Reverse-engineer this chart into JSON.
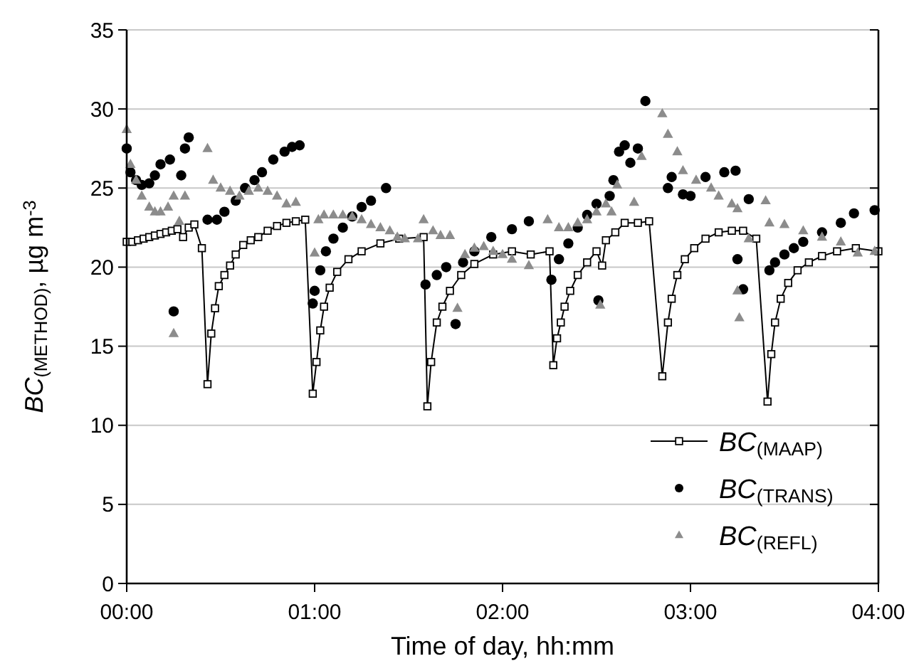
{
  "chart_data": {
    "type": "scatter",
    "xlabel": "Time of day, hh:mm",
    "ylabel": "BC$_{(METHOD)}$, µg m$^{-3}$",
    "xlim": [
      0,
      4
    ],
    "xticks": [
      {
        "value": 0,
        "label": "00:00"
      },
      {
        "value": 1,
        "label": "01:00"
      },
      {
        "value": 2,
        "label": "02:00"
      },
      {
        "value": 3,
        "label": "03:00"
      },
      {
        "value": 4,
        "label": "04:00"
      }
    ],
    "ylim": [
      0,
      35
    ],
    "yticks": [
      0,
      5,
      10,
      15,
      20,
      25,
      30,
      35
    ],
    "grid": "y",
    "legend": "bottom right",
    "series": [
      {
        "name": "BC$_{(MAAP)}$",
        "type": "line",
        "marker": "square",
        "line_style": "solid",
        "color": "#000000",
        "x": [
          0.0,
          0.03,
          0.06,
          0.09,
          0.12,
          0.15,
          0.18,
          0.21,
          0.24,
          0.27,
          0.3,
          0.33,
          0.36,
          0.4,
          0.43,
          0.45,
          0.47,
          0.49,
          0.52,
          0.55,
          0.58,
          0.62,
          0.66,
          0.7,
          0.75,
          0.8,
          0.85,
          0.9,
          0.95,
          0.99,
          1.01,
          1.03,
          1.05,
          1.08,
          1.12,
          1.18,
          1.25,
          1.35,
          1.45,
          1.58,
          1.6,
          1.62,
          1.65,
          1.68,
          1.72,
          1.78,
          1.85,
          1.95,
          2.05,
          2.15,
          2.25,
          2.27,
          2.29,
          2.31,
          2.33,
          2.36,
          2.4,
          2.45,
          2.5,
          2.53,
          2.55,
          2.6,
          2.65,
          2.72,
          2.78,
          2.85,
          2.88,
          2.9,
          2.93,
          2.97,
          3.02,
          3.08,
          3.15,
          3.22,
          3.28,
          3.35,
          3.41,
          3.43,
          3.45,
          3.48,
          3.52,
          3.57,
          3.63,
          3.7,
          3.78,
          3.88,
          4.0
        ],
        "values": [
          21.6,
          21.6,
          21.7,
          21.8,
          21.9,
          22.0,
          22.1,
          22.2,
          22.3,
          22.4,
          21.9,
          22.5,
          22.7,
          21.2,
          12.6,
          15.8,
          17.4,
          18.8,
          19.5,
          20.1,
          20.8,
          21.4,
          21.7,
          21.9,
          22.3,
          22.6,
          22.8,
          22.9,
          23.0,
          12.0,
          14.0,
          16.0,
          17.5,
          18.7,
          19.7,
          20.5,
          21.0,
          21.5,
          21.8,
          21.9,
          11.2,
          14.0,
          16.5,
          17.5,
          18.5,
          19.5,
          20.2,
          20.8,
          21.0,
          20.8,
          21.0,
          13.8,
          15.5,
          16.5,
          17.5,
          18.5,
          19.5,
          20.3,
          21.0,
          20.1,
          21.7,
          22.2,
          22.8,
          22.8,
          22.9,
          13.1,
          16.5,
          18.0,
          19.5,
          20.5,
          21.2,
          21.8,
          22.2,
          22.3,
          22.3,
          21.8,
          11.5,
          14.5,
          16.5,
          18.0,
          19.0,
          19.8,
          20.3,
          20.7,
          21.0,
          21.2,
          21.0
        ]
      },
      {
        "name": "BC$_{(TRANS)}$",
        "marker": "circle",
        "color": "#000000",
        "x": [
          0.0,
          0.02,
          0.05,
          0.08,
          0.12,
          0.15,
          0.18,
          0.23,
          0.25,
          0.29,
          0.31,
          0.33,
          0.43,
          0.48,
          0.52,
          0.58,
          0.63,
          0.68,
          0.72,
          0.78,
          0.84,
          0.88,
          0.92,
          0.99,
          1.0,
          1.03,
          1.06,
          1.1,
          1.15,
          1.2,
          1.25,
          1.3,
          1.38,
          1.59,
          1.65,
          1.7,
          1.75,
          1.79,
          1.85,
          1.94,
          2.05,
          2.14,
          2.26,
          2.3,
          2.35,
          2.4,
          2.45,
          2.51,
          2.5,
          2.57,
          2.59,
          2.62,
          2.65,
          2.68,
          2.72,
          2.76,
          2.88,
          2.9,
          2.96,
          3.0,
          3.08,
          3.18,
          3.24,
          3.25,
          3.28,
          3.31,
          3.42,
          3.45,
          3.5,
          3.55,
          3.6,
          3.7,
          3.8,
          3.87,
          3.98
        ],
        "values": [
          27.5,
          26.0,
          25.5,
          25.2,
          25.3,
          25.8,
          26.5,
          26.8,
          17.2,
          25.8,
          27.5,
          28.2,
          23.0,
          23.0,
          23.5,
          24.2,
          25.0,
          25.5,
          26.0,
          26.8,
          27.3,
          27.6,
          27.7,
          17.7,
          18.5,
          19.8,
          21.0,
          21.8,
          22.5,
          23.2,
          23.8,
          24.2,
          25.0,
          18.9,
          19.5,
          20.0,
          16.4,
          20.3,
          21.0,
          21.9,
          22.4,
          22.9,
          19.2,
          20.5,
          21.5,
          22.5,
          23.3,
          17.9,
          24.0,
          24.5,
          25.5,
          27.3,
          27.7,
          26.6,
          27.5,
          30.5,
          25.0,
          25.7,
          24.6,
          24.5,
          25.7,
          26.0,
          26.1,
          20.5,
          18.6,
          24.3,
          19.8,
          20.3,
          20.8,
          21.2,
          21.6,
          22.2,
          22.8,
          23.4,
          23.6
        ]
      },
      {
        "name": "BC$_{(REFL)}$",
        "marker": "triangle",
        "color": "#8c8c8c",
        "x": [
          0.0,
          0.02,
          0.05,
          0.08,
          0.12,
          0.15,
          0.18,
          0.22,
          0.25,
          0.28,
          0.31,
          0.25,
          0.43,
          0.46,
          0.5,
          0.55,
          0.6,
          0.65,
          0.7,
          0.75,
          0.8,
          0.85,
          0.9,
          1.0,
          1.02,
          1.05,
          1.1,
          1.15,
          1.2,
          1.25,
          1.3,
          1.35,
          1.4,
          1.44,
          1.48,
          1.55,
          1.58,
          1.63,
          1.67,
          1.72,
          1.76,
          1.8,
          1.85,
          1.9,
          1.95,
          2.0,
          2.05,
          2.14,
          2.24,
          2.3,
          2.35,
          2.4,
          2.45,
          2.5,
          2.52,
          2.55,
          2.58,
          2.61,
          2.7,
          2.74,
          2.85,
          2.88,
          2.93,
          2.96,
          3.03,
          3.11,
          3.15,
          3.22,
          3.25,
          3.25,
          3.26,
          3.31,
          3.4,
          3.42,
          3.5,
          3.6,
          3.7,
          3.8,
          3.89,
          3.98
        ],
        "values": [
          28.7,
          26.5,
          25.5,
          24.5,
          23.8,
          23.5,
          23.5,
          23.8,
          24.5,
          22.9,
          24.5,
          15.8,
          27.5,
          25.5,
          25.0,
          24.8,
          24.5,
          24.8,
          25.0,
          24.8,
          24.5,
          24.0,
          24.1,
          20.9,
          23.0,
          23.3,
          23.3,
          23.3,
          23.2,
          23.0,
          22.7,
          22.5,
          22.3,
          21.9,
          21.8,
          21.8,
          23.0,
          22.3,
          22.0,
          22.0,
          17.4,
          20.8,
          21.2,
          21.3,
          21.0,
          20.8,
          20.5,
          20.1,
          23.0,
          22.5,
          22.5,
          22.8,
          23.0,
          23.5,
          17.6,
          24.0,
          23.5,
          25.2,
          24.1,
          27.0,
          29.7,
          28.4,
          27.3,
          26.1,
          25.5,
          25.0,
          24.5,
          24.0,
          23.7,
          18.5,
          16.8,
          21.8,
          24.2,
          22.8,
          22.7,
          22.3,
          21.9,
          21.6,
          20.9,
          21.0
        ]
      }
    ]
  }
}
